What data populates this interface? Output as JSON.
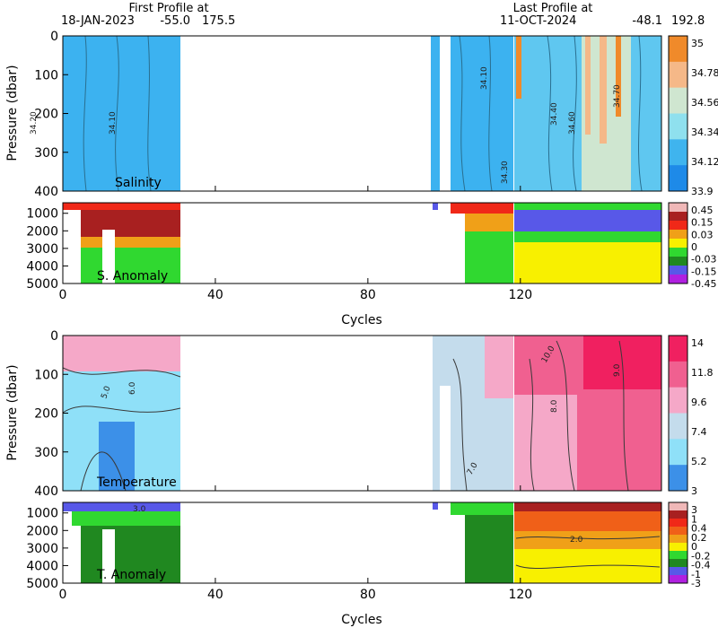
{
  "header": {
    "first_label": "First Profile at",
    "first_date": "18-JAN-2023",
    "first_lat": "-55.0",
    "first_lon": "175.5",
    "last_label": "Last Profile at",
    "last_date": "11-OCT-2024",
    "last_lat": "-48.1",
    "last_lon": "192.8"
  },
  "chart_data": [
    {
      "type": "heatmap",
      "panel_label": "Salinity",
      "ylabel": "Pressure (dbar)",
      "xlabel": "",
      "xlim": [
        0,
        157
      ],
      "ylim": [
        400,
        0
      ],
      "x_ticks": [
        0,
        40,
        80,
        120
      ],
      "y_ticks": [
        0,
        100,
        200,
        300,
        400
      ],
      "colorbar_labels": [
        "35",
        "34.78",
        "34.56",
        "34.34",
        "34.12",
        "33.9"
      ],
      "colorbar_colors": [
        "#f08a2a",
        "#f5b888",
        "#cfe6d0",
        "#8fe0ee",
        "#3fb4ee",
        "#1e8ae8"
      ],
      "contour_labels": [
        "34.10",
        "34.20",
        "34.30",
        "34.40",
        "34.60",
        "34.70"
      ],
      "data_coverage": [
        [
          0,
          31
        ],
        [
          97,
          99
        ],
        [
          101,
          118
        ],
        [
          120,
          157
        ]
      ]
    },
    {
      "type": "heatmap",
      "panel_label": "S. Anomaly",
      "xlabel": "Cycles",
      "xlim": [
        0,
        157
      ],
      "ylim": [
        5000,
        400
      ],
      "x_ticks": [
        0,
        40,
        80,
        120
      ],
      "y_ticks": [
        1000,
        2000,
        3000,
        4000,
        5000
      ],
      "colorbar_labels": [
        "0.45",
        "0.15",
        "0.03",
        "0",
        "-0.03",
        "-0.15",
        "-0.45"
      ],
      "colorbar_colors": [
        "#f0b8b8",
        "#a82020",
        "#f02818",
        "#f0a018",
        "#f8f000",
        "#30d830",
        "#208820",
        "#5858e8",
        "#b020e0"
      ]
    },
    {
      "type": "heatmap",
      "panel_label": "Temperature",
      "ylabel": "Pressure (dbar)",
      "xlabel": "",
      "xlim": [
        0,
        157
      ],
      "ylim": [
        400,
        0
      ],
      "x_ticks": [
        0,
        40,
        80,
        120
      ],
      "y_ticks": [
        0,
        100,
        200,
        300,
        400
      ],
      "colorbar_labels": [
        "14",
        "11.8",
        "9.6",
        "7.4",
        "5.2",
        "3"
      ],
      "colorbar_colors": [
        "#f02060",
        "#f06090",
        "#f5a8c8",
        "#c4dcec",
        "#8fe0f8",
        "#3c90e8"
      ],
      "contour_labels": [
        "5.0",
        "6.0",
        "7.0",
        "8.0",
        "9.0",
        "10.0"
      ]
    },
    {
      "type": "heatmap",
      "panel_label": "T. Anomaly",
      "xlabel": "Cycles",
      "xlim": [
        0,
        157
      ],
      "ylim": [
        5000,
        400
      ],
      "x_ticks": [
        0,
        40,
        80,
        120
      ],
      "y_ticks": [
        1000,
        2000,
        3000,
        4000,
        5000
      ],
      "colorbar_labels": [
        "3",
        "1",
        "0.4",
        "0.2",
        "0",
        "-0.2",
        "-0.4",
        "-1",
        "-3"
      ],
      "colorbar_colors": [
        "#f0b8b8",
        "#a82020",
        "#f02818",
        "#f06018",
        "#f0a018",
        "#f8f000",
        "#30d830",
        "#208820",
        "#5858e8",
        "#b020e0"
      ],
      "contour_labels": [
        "3.0",
        "2.0"
      ]
    }
  ]
}
